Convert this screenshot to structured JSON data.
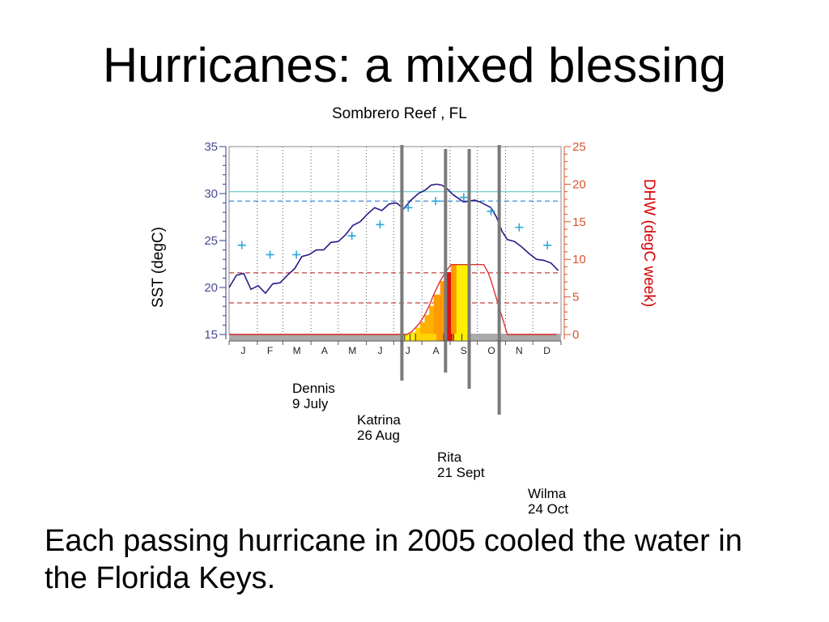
{
  "slide": {
    "title": "Hurricanes: a mixed blessing",
    "footnote": "Each passing hurricane in 2005 cooled the water in the Florida Keys."
  },
  "hurricanes": [
    {
      "name": "Dennis",
      "date": "9 July",
      "day": 190
    },
    {
      "name": "Katrina",
      "date": "26 Aug",
      "day": 238
    },
    {
      "name": "Rita",
      "date": "21 Sept",
      "day": 264
    },
    {
      "name": "Wilma",
      "date": "24 Oct",
      "day": 297
    }
  ],
  "chart_data": {
    "type": "line",
    "title": "Sombrero Reef , FL",
    "ylabel_left": "SST (degC)",
    "ylabel_right": "DHW (degC week)",
    "x_categories": [
      "J",
      "F",
      "M",
      "A",
      "M",
      "J",
      "J",
      "A",
      "S",
      "O",
      "N",
      "D"
    ],
    "x_range_days": [
      0,
      365
    ],
    "y_left_range": [
      15,
      35
    ],
    "y_left_ticks": [
      15,
      20,
      25,
      30,
      35
    ],
    "y_right_range": [
      0,
      25
    ],
    "y_right_ticks": [
      0,
      5,
      10,
      15,
      20,
      25
    ],
    "grid": "vertical dotted",
    "reference_lines": [
      {
        "axis": "left",
        "value": 30.2,
        "color": "#5fc8c8",
        "style": "solid"
      },
      {
        "axis": "left",
        "value": 29.2,
        "color": "#3a8fd8",
        "style": "dashed"
      },
      {
        "axis": "right",
        "value": 8.2,
        "color": "#c04040",
        "style": "dashed"
      },
      {
        "axis": "right",
        "value": 4.2,
        "color": "#c04040",
        "style": "dashed"
      }
    ],
    "series": [
      {
        "axis": "left",
        "color": "#2a1a86",
        "style": "line",
        "x": [
          0,
          8,
          16,
          24,
          32,
          40,
          48,
          56,
          64,
          72,
          80,
          88,
          96,
          104,
          112,
          120,
          128,
          136,
          144,
          152,
          160,
          168,
          176,
          184,
          192,
          200,
          208,
          216,
          222,
          228,
          234,
          240,
          246,
          252,
          258,
          264,
          270,
          276,
          282,
          288,
          294,
          300,
          306,
          314,
          322,
          330,
          338,
          346,
          354,
          362
        ],
        "y": [
          20.0,
          21.3,
          21.5,
          19.8,
          20.2,
          19.4,
          20.4,
          20.5,
          21.3,
          22.0,
          23.3,
          23.5,
          24.0,
          24.0,
          24.8,
          24.9,
          25.6,
          26.6,
          27.0,
          27.8,
          28.5,
          28.2,
          28.9,
          29.0,
          28.4,
          29.3,
          30.0,
          30.4,
          30.9,
          31.0,
          30.9,
          30.5,
          29.9,
          29.5,
          29.1,
          29.2,
          29.3,
          29.1,
          28.8,
          28.5,
          27.5,
          26.0,
          25.1,
          24.9,
          24.3,
          23.6,
          23.0,
          22.9,
          22.6,
          21.8
        ]
      },
      {
        "axis": "left",
        "color": "#2ba8d8",
        "style": "marker",
        "x": [
          14,
          45,
          74,
          135,
          166,
          197,
          227,
          258,
          288,
          319,
          350
        ],
        "y": [
          24.5,
          23.5,
          23.5,
          25.5,
          26.7,
          28.5,
          29.2,
          29.6,
          28.1,
          26.4,
          24.5
        ]
      },
      {
        "axis": "right",
        "color": "#e03030",
        "style": "line",
        "x": [
          0,
          195,
          200,
          205,
          210,
          215,
          220,
          225,
          232,
          238,
          244,
          250,
          256,
          262,
          268,
          274,
          280,
          285,
          288,
          291,
          294,
          297,
          300,
          303,
          306,
          360
        ],
        "y": [
          0,
          0,
          0.3,
          0.9,
          1.6,
          2.6,
          3.8,
          5.3,
          7.1,
          8.3,
          9.3,
          9.3,
          9.3,
          9.3,
          9.3,
          9.3,
          9.3,
          8.2,
          7.2,
          6.0,
          4.8,
          3.6,
          2.4,
          1.2,
          0,
          0
        ]
      }
    ]
  }
}
